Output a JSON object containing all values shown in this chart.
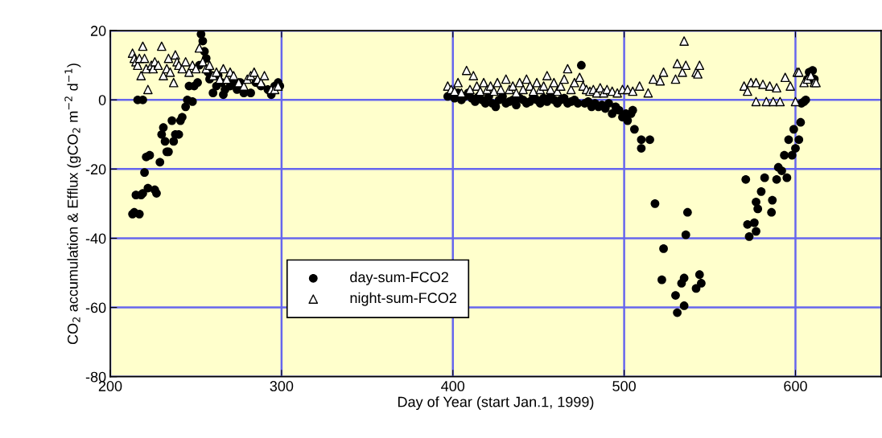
{
  "chart_data": {
    "type": "scatter",
    "xlabel": "Day of Year (start Jan.1, 1999)",
    "ylabel": "CO$_{2}$ accumulation & Efflux (gCO$_{2}$ m$^{−2}$ d$^{−1}$)",
    "xlim": [
      200,
      650
    ],
    "xticks": [
      200,
      300,
      400,
      500,
      600
    ],
    "ylim": [
      -80,
      20
    ],
    "yticks": [
      -80,
      -60,
      -40,
      -20,
      0,
      20
    ],
    "grid": true,
    "legend": "lower left",
    "series": [
      {
        "name": "day-sum-FCO2",
        "color": "#000000",
        "marker": "circle",
        "x": [
          213,
          214,
          215,
          216,
          217,
          218,
          219,
          219,
          220,
          221,
          222,
          223,
          226,
          227,
          229,
          230,
          231,
          232,
          233,
          234,
          236,
          237,
          238,
          240,
          241,
          242,
          244,
          245,
          246,
          248,
          249,
          251,
          252,
          253,
          254,
          255,
          256,
          257,
          258,
          260,
          262,
          263,
          265,
          266,
          267,
          270,
          272,
          274,
          276,
          278,
          282,
          285,
          288,
          292,
          294,
          296,
          298,
          299,
          397,
          401,
          403,
          405,
          407,
          409,
          411,
          413,
          415,
          417,
          419,
          421,
          423,
          425,
          427,
          429,
          431,
          433,
          435,
          437,
          439,
          441,
          443,
          445,
          447,
          449,
          451,
          453,
          455,
          457,
          459,
          461,
          463,
          465,
          467,
          469,
          471,
          473,
          475,
          477,
          479,
          481,
          483,
          485,
          487,
          489,
          491,
          493,
          495,
          497,
          499,
          501,
          502,
          504,
          505,
          506,
          510,
          515,
          510,
          518,
          537,
          536,
          523,
          522,
          535,
          533.5,
          544,
          545,
          542,
          530,
          535,
          531,
          571,
          582,
          589,
          595,
          580,
          577,
          586.5,
          578,
          586,
          572,
          576,
          577,
          573,
          590,
          592,
          593.5,
          598,
          600,
          596,
          602,
          599,
          603,
          603.5,
          605,
          606,
          607,
          608,
          610,
          611
        ],
        "values": [
          -33,
          -32.5,
          -27.5,
          0,
          -33,
          -27.5,
          -27,
          0,
          -21,
          -16.5,
          -25.5,
          -16,
          -26,
          -27,
          -18,
          -10,
          -8,
          -12,
          -15,
          -15,
          -6,
          -12,
          -10,
          -10,
          -6,
          -5,
          -2,
          0,
          4,
          -0.5,
          4,
          5,
          10,
          19,
          17,
          14,
          12,
          8,
          6,
          2,
          4,
          7,
          5,
          1.5,
          3,
          4,
          5,
          3,
          5,
          2,
          2,
          5,
          4,
          3,
          1.5,
          4,
          5,
          4,
          1,
          0.5,
          2,
          0,
          1,
          2,
          0.5,
          -0.5,
          1,
          0,
          -1,
          1,
          -1,
          -2,
          0,
          1,
          -1,
          -0.5,
          0,
          -1.5,
          0.5,
          0,
          -1,
          -0.5,
          1,
          0,
          -1,
          0.5,
          -0.5,
          1,
          0,
          -1,
          0,
          0.5,
          -1,
          -0.5,
          0,
          -1,
          10,
          -1,
          -0.5,
          -2,
          -1,
          -2,
          -1.5,
          -2.5,
          -1,
          -4,
          -2,
          -3,
          -5,
          -4,
          -6,
          -4,
          -3,
          -8.5,
          -11.5,
          -11.5,
          -14,
          -30,
          -32.5,
          -39,
          -43,
          -52,
          -51.5,
          -53,
          -50.5,
          -53,
          -54.5,
          -56.5,
          -59.5,
          -61.5,
          -23,
          -22.5,
          -23,
          -22.5,
          -26.5,
          -29.5,
          -29,
          -31.5,
          -32.5,
          -36,
          -35.5,
          -38,
          -39.5,
          -19.5,
          -20.5,
          -16,
          -16,
          -14,
          -11.5,
          -11.5,
          -8.5,
          -6.5,
          -1,
          -0.5,
          0,
          6,
          8,
          8.5,
          6
        ]
      },
      {
        "name": "night-sum-FCO2",
        "color": "#ffffff",
        "marker": "triangle",
        "x": [
          213,
          214,
          215,
          216,
          217,
          218,
          219,
          220,
          221,
          222,
          224,
          225,
          226,
          228,
          230,
          231,
          233,
          234,
          235,
          237,
          238,
          239,
          240,
          242,
          244,
          246,
          248,
          250,
          252,
          254,
          256,
          258,
          260,
          262,
          264,
          266,
          268,
          270,
          272,
          275,
          278,
          280,
          282,
          284,
          286,
          288,
          290,
          294,
          296,
          298,
          397,
          399,
          401,
          403,
          405,
          408,
          410,
          412,
          414,
          416,
          418,
          420,
          422,
          424,
          426,
          428,
          431,
          433,
          435,
          437,
          439,
          441,
          443,
          445,
          447,
          449,
          451,
          453,
          455,
          457,
          459,
          461,
          463,
          465,
          467,
          469,
          471,
          474,
          476,
          478,
          480,
          482,
          484,
          486,
          488,
          490,
          493,
          496,
          499,
          502,
          505,
          509,
          514,
          517,
          521,
          523,
          530,
          531,
          534,
          535,
          536,
          542,
          543,
          544,
          570,
          572,
          574,
          577,
          577,
          581,
          583,
          585,
          587,
          589,
          591,
          594,
          597,
          600,
          601,
          602,
          605,
          607,
          609,
          611,
          612
        ],
        "values": [
          13.5,
          12,
          11,
          10,
          12,
          7,
          15.5,
          12,
          9,
          3,
          10,
          9,
          11,
          10,
          15.5,
          7,
          9,
          12,
          8,
          5,
          13,
          11,
          10,
          9,
          11,
          8,
          10,
          9,
          15,
          11,
          9,
          10,
          7,
          8,
          6,
          9,
          6,
          8,
          7,
          5,
          4,
          6,
          7,
          8,
          6,
          5,
          7,
          3,
          3,
          4,
          4,
          3,
          2.5,
          5,
          2,
          8.5,
          3,
          7,
          4,
          2.5,
          5,
          3,
          4,
          2.5,
          5,
          3,
          6,
          3,
          4,
          2,
          5,
          3,
          6,
          4,
          2.5,
          5,
          3,
          4,
          7,
          3,
          5,
          2.5,
          4,
          6,
          9,
          3,
          5,
          6.5,
          4,
          3,
          2.5,
          3,
          2,
          3.5,
          2,
          3,
          2.5,
          2,
          3,
          3,
          2.5,
          4,
          2,
          6,
          5.5,
          8,
          6,
          10.5,
          8,
          17,
          10,
          8,
          7.5,
          10,
          4,
          2.5,
          5,
          5,
          -0.5,
          4.5,
          -0.5,
          4,
          -0.5,
          3.5,
          -0.5,
          6.5,
          4,
          -0.5,
          8,
          8,
          5,
          6,
          7,
          5,
          5
        ]
      }
    ]
  }
}
